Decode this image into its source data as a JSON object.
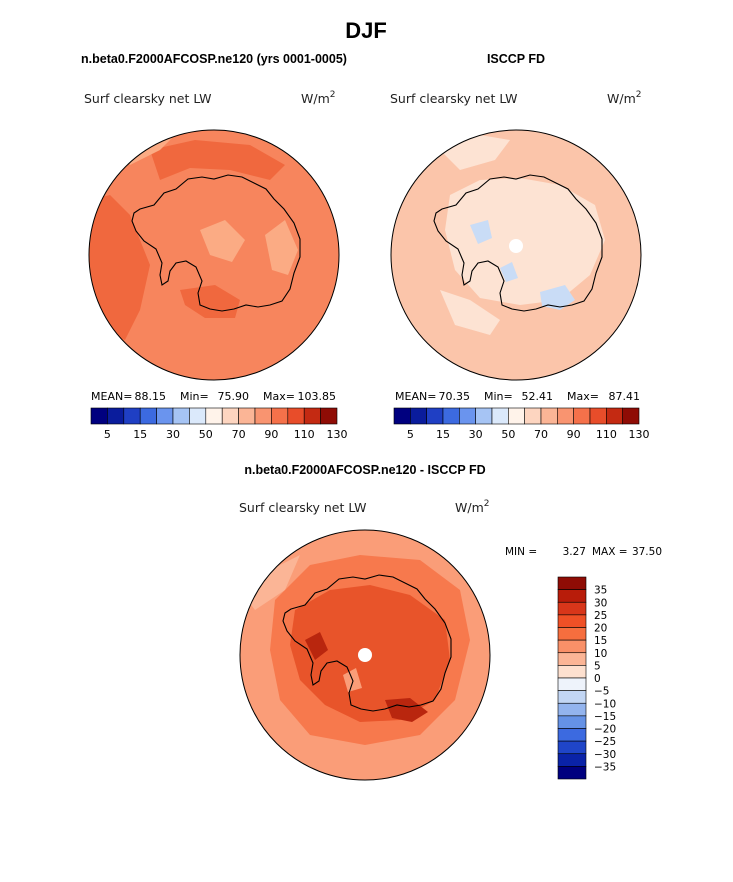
{
  "page": {
    "title": "DJF",
    "projection": "polar-stereographic-south"
  },
  "panels": [
    {
      "id": "model",
      "header": "n.beta0.F2000AFCOSP.ne120 (yrs 0001-0005)",
      "variable": "Surf clearsky net LW",
      "units_base": "W/m",
      "units_exp": "2",
      "stats": {
        "mean_label": "MEAN=",
        "mean": "88.15",
        "min_label": "Min=",
        "min": "75.90",
        "max_label": "Max=",
        "max": "103.85"
      },
      "colorbar_ticks": [
        "5",
        "15",
        "30",
        "50",
        "70",
        "90",
        "110",
        "130"
      ]
    },
    {
      "id": "obs",
      "header": "ISCCP FD",
      "variable": "Surf clearsky net LW",
      "units_base": "W/m",
      "units_exp": "2",
      "stats": {
        "mean_label": "MEAN=",
        "mean": "70.35",
        "min_label": "Min=",
        "min": "52.41",
        "max_label": "Max=",
        "max": "87.41"
      },
      "colorbar_ticks": [
        "5",
        "15",
        "30",
        "50",
        "70",
        "90",
        "110",
        "130"
      ]
    },
    {
      "id": "diff",
      "header": "n.beta0.F2000AFCOSP.ne120 - ISCCP FD",
      "variable": "Surf clearsky net LW",
      "units_base": "W/m",
      "units_exp": "2",
      "stats": {
        "min_label": "MIN =",
        "min": "3.27",
        "max_label": "MAX =",
        "max": "37.50"
      },
      "colorbar_ticks": [
        "35",
        "30",
        "25",
        "20",
        "15",
        "10",
        "5",
        "0",
        "−5",
        "−10",
        "−15",
        "−20",
        "−25",
        "−30",
        "−35"
      ]
    }
  ],
  "colors": {
    "abs_scale": [
      "#00007f",
      "#0a1c9c",
      "#1f3fc4",
      "#3c6ae0",
      "#6a94ee",
      "#a6c4f4",
      "#dbe9fb",
      "#fff3ea",
      "#fdd5c0",
      "#fbb596",
      "#f99470",
      "#f5714a",
      "#e84d2a",
      "#c42a12",
      "#8f0c05"
    ],
    "diff_scale": [
      "#8f0c05",
      "#b81c0a",
      "#d8361a",
      "#ef5026",
      "#f66e3e",
      "#f99068",
      "#fbb596",
      "#fde0cf",
      "#eef3fb",
      "#c2d6f4",
      "#93b4ee",
      "#6592e6",
      "#3c6ae0",
      "#1f45c8",
      "#0a23a8",
      "#00007f"
    ],
    "model_base": "#f7855d",
    "model_warm": "#f0683e",
    "model_ice": "#fbab84",
    "obs_base": "#fbc5aa",
    "obs_light": "#fde3d3",
    "obs_blue": "#c9dcf6",
    "diff_base": "#fa9d78",
    "diff_mid": "#f7794d",
    "diff_hot": "#e8542a",
    "diff_dark": "#b9260e",
    "coast": "#000000"
  },
  "chart_data": [
    {
      "type": "heatmap",
      "title": "n.beta0.F2000AFCOSP.ne120 (yrs 0001-0005)",
      "field": "Surf clearsky net LW",
      "units": "W/m2",
      "mean": 88.15,
      "min": 75.9,
      "max": 103.85,
      "levels": [
        5,
        10,
        15,
        20,
        30,
        40,
        50,
        60,
        70,
        80,
        90,
        100,
        110,
        120,
        130
      ],
      "colorbar_labels": [
        5,
        15,
        30,
        50,
        70,
        90,
        110,
        130
      ]
    },
    {
      "type": "heatmap",
      "title": "ISCCP FD",
      "field": "Surf clearsky net LW",
      "units": "W/m2",
      "mean": 70.35,
      "min": 52.41,
      "max": 87.41,
      "levels": [
        5,
        10,
        15,
        20,
        30,
        40,
        50,
        60,
        70,
        80,
        90,
        100,
        110,
        120,
        130
      ],
      "colorbar_labels": [
        5,
        15,
        30,
        50,
        70,
        90,
        110,
        130
      ]
    },
    {
      "type": "heatmap",
      "title": "n.beta0.F2000AFCOSP.ne120 - ISCCP FD",
      "field": "Surf clearsky net LW",
      "units": "W/m2",
      "min": 3.27,
      "max": 37.5,
      "levels": [
        -35,
        -30,
        -25,
        -20,
        -15,
        -10,
        -5,
        0,
        5,
        10,
        15,
        20,
        25,
        30,
        35
      ],
      "colorbar_labels": [
        35,
        30,
        25,
        20,
        15,
        10,
        5,
        0,
        -5,
        -10,
        -15,
        -20,
        -25,
        -30,
        -35
      ]
    }
  ]
}
